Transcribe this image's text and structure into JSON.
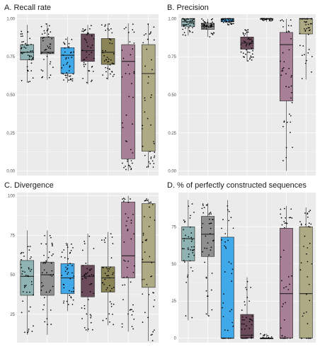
{
  "colors": {
    "panel_bg": "#ebebeb",
    "grid": "#ffffff",
    "points": "#000000",
    "box_outline": "#222222",
    "fills": [
      "#8fb3b3",
      "#8f8f8f",
      "#3fa9ea",
      "#6b4a5a",
      "#8a8457",
      "#a77f97",
      "#aeab84"
    ]
  },
  "chart_data": [
    {
      "type": "box",
      "title": "A. Recall rate",
      "ylim": [
        -0.03,
        1.03
      ],
      "yticks": [
        0.0,
        0.25,
        0.5,
        0.75,
        1.0
      ],
      "ytick_labels": [
        "0.00",
        "0.25",
        "0.50",
        "0.75",
        "1.00"
      ],
      "series": [
        {
          "min": 0.58,
          "q1": 0.73,
          "median": 0.78,
          "q3": 0.83,
          "max": 0.96,
          "fill_index": 0
        },
        {
          "min": 0.6,
          "q1": 0.77,
          "median": 0.78,
          "q3": 0.88,
          "max": 0.97,
          "fill_index": 1
        },
        {
          "min": 0.58,
          "q1": 0.64,
          "median": 0.76,
          "q3": 0.81,
          "max": 0.88,
          "fill_index": 2
        },
        {
          "min": 0.57,
          "q1": 0.72,
          "median": 0.79,
          "q3": 0.9,
          "max": 0.96,
          "fill_index": 3
        },
        {
          "min": 0.6,
          "q1": 0.7,
          "median": 0.78,
          "q3": 0.87,
          "max": 0.97,
          "fill_index": 4
        },
        {
          "min": 0.0,
          "q1": 0.08,
          "median": 0.72,
          "q3": 0.83,
          "max": 0.97,
          "fill_index": 5
        },
        {
          "min": 0.02,
          "q1": 0.13,
          "median": 0.64,
          "q3": 0.83,
          "max": 0.97,
          "fill_index": 6
        }
      ]
    },
    {
      "type": "box",
      "title": "B. Precision",
      "ylim": [
        -0.03,
        1.03
      ],
      "yticks": [
        0.0,
        0.25,
        0.5,
        0.75,
        1.0
      ],
      "ytick_labels": [
        "0.00",
        "0.25",
        "0.50",
        "0.75",
        "1.00"
      ],
      "series": [
        {
          "min": 0.89,
          "q1": 0.95,
          "median": 0.98,
          "q3": 1.0,
          "max": 1.0,
          "fill_index": 0
        },
        {
          "min": 0.88,
          "q1": 0.93,
          "median": 0.95,
          "q3": 0.97,
          "max": 1.0,
          "fill_index": 1
        },
        {
          "min": 0.96,
          "q1": 0.98,
          "median": 1.0,
          "q3": 1.0,
          "max": 1.0,
          "fill_index": 2
        },
        {
          "min": 0.72,
          "q1": 0.8,
          "median": 0.84,
          "q3": 0.88,
          "max": 0.93,
          "fill_index": 3
        },
        {
          "min": 0.98,
          "q1": 1.0,
          "median": 1.0,
          "q3": 1.0,
          "max": 1.0,
          "fill_index": 4
        },
        {
          "min": 0.0,
          "q1": 0.46,
          "median": 0.83,
          "q3": 0.91,
          "max": 1.0,
          "fill_index": 5
        },
        {
          "min": 0.6,
          "q1": 0.9,
          "median": 1.0,
          "q3": 1.0,
          "max": 1.0,
          "fill_index": 6
        }
      ]
    },
    {
      "type": "box",
      "title": "C. Divergence",
      "ylim": [
        7,
        102
      ],
      "yticks": [
        25,
        50,
        75,
        100
      ],
      "ytick_labels": [
        "25",
        "50",
        "75",
        "100"
      ],
      "series": [
        {
          "min": 12,
          "q1": 37,
          "median": 49,
          "q3": 59,
          "max": 78,
          "fill_index": 0
        },
        {
          "min": 12,
          "q1": 37,
          "median": 50,
          "q3": 58,
          "max": 78,
          "fill_index": 1
        },
        {
          "min": 27,
          "q1": 38,
          "median": 48,
          "q3": 57,
          "max": 70,
          "fill_index": 2
        },
        {
          "min": 14,
          "q1": 36,
          "median": 49,
          "q3": 56,
          "max": 76,
          "fill_index": 3
        },
        {
          "min": 18,
          "q1": 39,
          "median": 48,
          "q3": 55,
          "max": 77,
          "fill_index": 4
        },
        {
          "min": 14,
          "q1": 48,
          "median": 62,
          "q3": 96,
          "max": 100,
          "fill_index": 5
        },
        {
          "min": 8,
          "q1": 42,
          "median": 58,
          "q3": 95,
          "max": 98,
          "fill_index": 6
        }
      ]
    },
    {
      "type": "box",
      "title": "D. % of perfectly constructed sequences",
      "ylim": [
        -3,
        98
      ],
      "yticks": [
        0,
        25,
        50,
        75
      ],
      "ytick_labels": [
        "0",
        "25",
        "50",
        "75"
      ],
      "series": [
        {
          "min": 12,
          "q1": 52,
          "median": 67,
          "q3": 75,
          "max": 93,
          "fill_index": 0
        },
        {
          "min": 15,
          "q1": 55,
          "median": 70,
          "q3": 82,
          "max": 91,
          "fill_index": 1
        },
        {
          "min": 0,
          "q1": 0,
          "median": 0,
          "q3": 68,
          "max": 93,
          "fill_index": 2
        },
        {
          "min": 0,
          "q1": 0,
          "median": 2,
          "q3": 16,
          "max": 41,
          "fill_index": 3
        },
        {
          "min": 0,
          "q1": 0,
          "median": 0,
          "q3": 0,
          "max": 3,
          "fill_index": 4
        },
        {
          "min": 0,
          "q1": 0,
          "median": 30,
          "q3": 74,
          "max": 89,
          "fill_index": 5
        },
        {
          "min": 0,
          "q1": 0,
          "median": 30,
          "q3": 75,
          "max": 88,
          "fill_index": 6
        }
      ]
    }
  ]
}
